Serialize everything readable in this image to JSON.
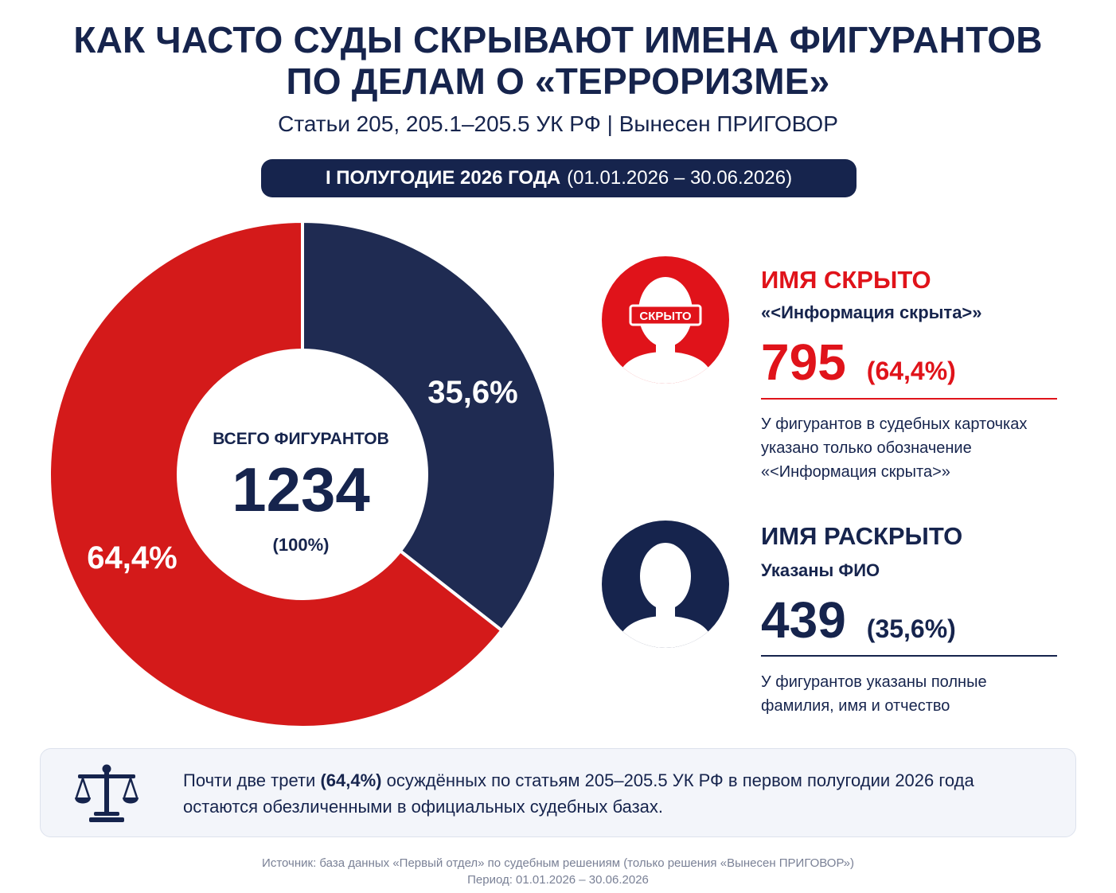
{
  "header": {
    "title_line1": "КАК ЧАСТО СУДЫ СКРЫВАЮТ ИМЕНА ФИГУРАНТОВ",
    "title_line2": "ПО ДЕЛАМ О «ТЕРРОРИЗМЕ»",
    "subtitle": "Статьи 205, 205.1–205.5 УК РФ | Вынесен ПРИГОВОР",
    "period_bold": "I ПОЛУГОДИЕ 2026 ГОДА",
    "period_dates": "(01.01.2026 – 30.06.2026)"
  },
  "chart_data": {
    "type": "pie",
    "donut": true,
    "center": {
      "label": "ВСЕГО ФИГУРАНТОВ",
      "total": "1234",
      "total_pct": "(100%)"
    },
    "slices": [
      {
        "name": "ИМЯ РАСКРЫТО",
        "value": 439,
        "percent_label": "35,6%",
        "color": "#1f2b52"
      },
      {
        "name": "ИМЯ СКРЫТО",
        "value": 795,
        "percent_label": "64,4%",
        "color": "#d41a1a"
      }
    ]
  },
  "categories": {
    "hidden": {
      "title": "ИМЯ СКРЫТО",
      "subtitle": "«<Информация скрыта>»",
      "badge": "СКРЫТО",
      "count": "795",
      "percent": "(64,4%)",
      "desc_line1": "У фигурантов в судебных карточках",
      "desc_line2": "указано только обозначение",
      "desc_line3": "«<Информация скрыта>»",
      "color": "#e0131a"
    },
    "revealed": {
      "title": "ИМЯ РАСКРЫТО",
      "subtitle": "Указаны ФИО",
      "count": "439",
      "percent": "(35,6%)",
      "desc_line1": "У фигурантов указаны полные",
      "desc_line2": "фамилия, имя и отчество",
      "color": "#16244d"
    }
  },
  "note": {
    "part1": "Почти две трети ",
    "bold": "(64,4%)",
    "part2": " осуждённых по статьям 205–205.5 УК РФ в первом полугодии 2026 года остаются обезличенными в официальных судебных базах."
  },
  "footer": {
    "source": "Источник: база данных «Первый отдел» по судебным решениям (только решения «Вынесен ПРИГОВОР»)",
    "period": "Период: 01.01.2026 – 30.06.2026"
  }
}
